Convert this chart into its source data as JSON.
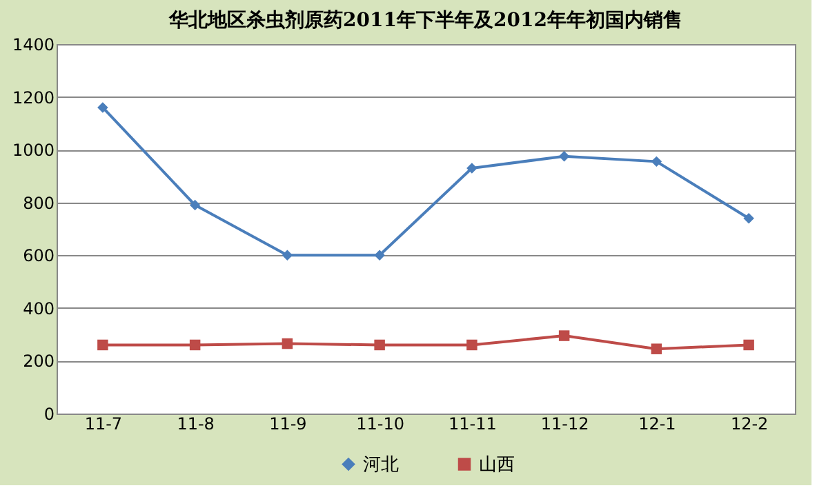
{
  "chart_data": {
    "type": "line",
    "title": "华北地区杀虫剂原药2011年下半年及2012年年初国内销售",
    "categories": [
      "11-7",
      "11-8",
      "11-9",
      "11-10",
      "11-11",
      "11-12",
      "12-1",
      "12-2"
    ],
    "series": [
      {
        "name": "河北",
        "color": "#4a7ebb",
        "marker": "diamond",
        "values": [
          1160,
          790,
          600,
          600,
          930,
          975,
          955,
          740
        ]
      },
      {
        "name": "山西",
        "color": "#be4b48",
        "marker": "square",
        "values": [
          260,
          260,
          265,
          260,
          260,
          295,
          245,
          260
        ]
      }
    ],
    "ylim": [
      0,
      1400
    ],
    "yticks": [
      0,
      200,
      400,
      600,
      800,
      1000,
      1200,
      1400
    ],
    "grid": "y",
    "legend": "bottom"
  }
}
